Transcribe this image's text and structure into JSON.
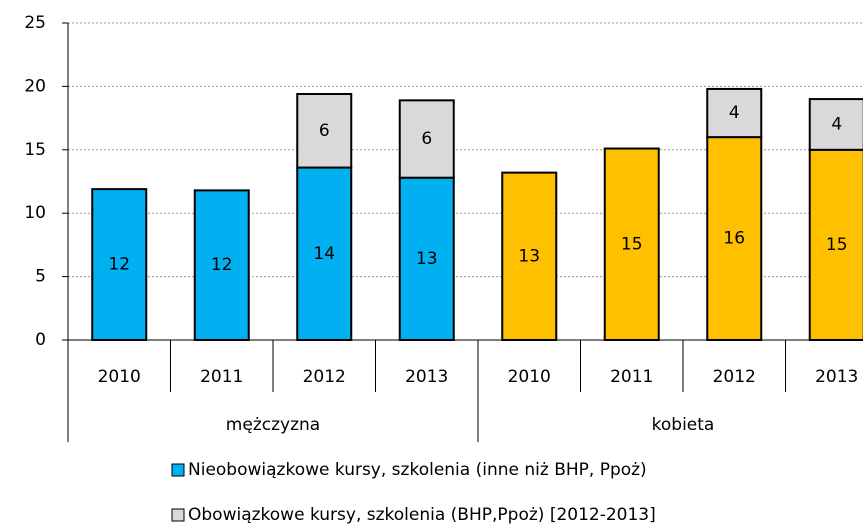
{
  "chart_data": {
    "type": "stacked_bar",
    "groups": [
      {
        "name": "mężczyzna",
        "categories": [
          "2010",
          "2011",
          "2012",
          "2013"
        ]
      },
      {
        "name": "kobieta",
        "categories": [
          "2010",
          "2011",
          "2012",
          "2013"
        ]
      }
    ],
    "series": [
      {
        "name": "Nieobowiązkowe kursy, szkolenia (inne niż BHP, Ppoż)",
        "color": "#00b0f0",
        "colors": [
          "#00b0f0",
          "#00b0f0",
          "#00b0f0",
          "#00b0f0",
          "#ffc000",
          "#ffc000",
          "#ffc000",
          "#ffc000"
        ],
        "values": [
          11.9,
          11.8,
          13.6,
          12.8,
          13.2,
          15.1,
          16.0,
          15.0
        ],
        "value_labels": [
          "12",
          "12",
          "14",
          "13",
          "13",
          "15",
          "16",
          "15"
        ]
      },
      {
        "name": "Obowiązkowe kursy, szkolenia (BHP,Ppoż) [2012-2013]",
        "color": "#d9d9d9",
        "colors": [
          "#d9d9d9",
          "#d9d9d9",
          "#d9d9d9",
          "#d9d9d9",
          "#d9d9d9",
          "#d9d9d9",
          "#d9d9d9",
          "#d9d9d9"
        ],
        "values": [
          null,
          null,
          5.8,
          6.1,
          null,
          null,
          3.8,
          4.0
        ],
        "value_labels": [
          null,
          null,
          "6",
          "6",
          null,
          null,
          "4",
          "4"
        ]
      }
    ],
    "ylim": [
      0,
      25
    ],
    "yticks": [
      0,
      5,
      10,
      15,
      20,
      25
    ],
    "grid": true,
    "legend": "bottom"
  }
}
